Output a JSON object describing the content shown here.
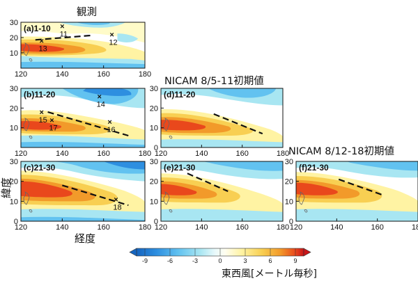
{
  "chart_data": {
    "type": "heatmap",
    "variable": "東西風",
    "headings": {
      "obs": "観測",
      "run1": "NICAM   8/5-11初期値",
      "run2": "NICAM   8/12-18初期値"
    },
    "axes": {
      "xlabel": "経度",
      "ylabel": "緯度",
      "xlim": [
        120,
        180
      ],
      "ylim": [
        0,
        30
      ],
      "xticks": [
        "120",
        "140",
        "160",
        "180"
      ],
      "yticks": [
        "0",
        "10",
        "20",
        "30"
      ]
    },
    "colorbar": {
      "label": "東西風[メートル毎秒]",
      "ticks": [
        "-9",
        "-6",
        "-3",
        "0",
        "3",
        "6",
        "9"
      ],
      "range": [
        -9,
        9
      ],
      "colors": [
        "#1565c0",
        "#2e8fe0",
        "#62c2f0",
        "#a8e6f2",
        "#e9f9fb",
        "#fffef0",
        "#fff3a3",
        "#f8cf52",
        "#f29a2a",
        "#e9481c",
        "#c8161a"
      ]
    },
    "panels": [
      {
        "id": "a",
        "title": "(a)1-10",
        "source": "obs",
        "storms": [
          {
            "id": "11",
            "lon": 140,
            "lat": 27.5
          },
          {
            "id": "12",
            "lon": 164,
            "lat": 22
          },
          {
            "id": "13",
            "lon": 130,
            "lat": 18
          }
        ],
        "line": [
          [
            127,
            18.5
          ],
          [
            155,
            21.5
          ]
        ]
      },
      {
        "id": "b",
        "title": "(b)11-20",
        "source": "obs",
        "storms": [
          {
            "id": "14",
            "lon": 158,
            "lat": 26
          },
          {
            "id": "15",
            "lon": 130,
            "lat": 18
          },
          {
            "id": "17",
            "lon": 135,
            "lat": 14
          },
          {
            "id": "16",
            "lon": 163,
            "lat": 13
          }
        ],
        "line": [
          [
            133,
            18
          ],
          [
            172,
            6
          ]
        ]
      },
      {
        "id": "c",
        "title": "(c)21-30",
        "source": "obs",
        "storms": [
          {
            "id": "18",
            "lon": 166,
            "lat": 11
          }
        ],
        "line": [
          [
            140,
            18
          ],
          [
            172,
            8
          ]
        ]
      },
      {
        "id": "d",
        "title": "(d)11-20",
        "source": "run1",
        "storms": [],
        "line": [
          [
            146,
            17
          ],
          [
            170,
            7
          ]
        ]
      },
      {
        "id": "e",
        "title": "(e)21-30",
        "source": "run1",
        "storms": [],
        "line": [
          [
            133,
            24
          ],
          [
            153,
            15
          ]
        ]
      },
      {
        "id": "f",
        "title": "(f)21-30",
        "source": "run2",
        "storms": [],
        "line": [
          [
            141,
            21
          ],
          [
            163,
            13
          ]
        ]
      }
    ]
  }
}
